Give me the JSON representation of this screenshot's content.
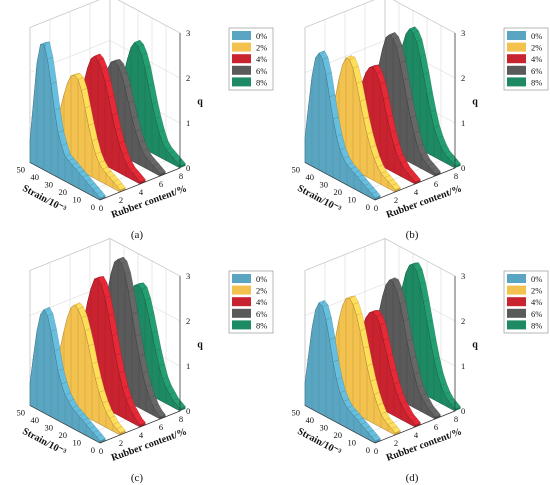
{
  "chart_data": [
    {
      "type": "area",
      "subtype": "3d-stacked-walls",
      "caption": "(a)",
      "xlabel": "Rubber content/%",
      "ylabel": "Strain/10⁻³",
      "zlabel": "q",
      "x_ticks": [
        "0",
        "2",
        "4",
        "6",
        "8"
      ],
      "y_ticks": [
        "0",
        "10",
        "20",
        "30",
        "40",
        "50"
      ],
      "z_ticks": [
        "0",
        "1",
        "2",
        "3"
      ],
      "xlim": [
        0,
        8
      ],
      "ylim": [
        0,
        50
      ],
      "zlim": [
        0,
        3
      ],
      "legend_position": "top-right",
      "y": [
        0,
        2.5,
        5,
        7.5,
        10,
        12.5,
        15,
        17.5,
        20,
        22.5,
        25,
        27.5,
        30,
        32.5,
        35,
        37.5,
        40,
        42.5,
        45,
        47.5,
        50
      ],
      "series": [
        {
          "name": "0%",
          "color": "#5aa6c2",
          "values": [
            0.05,
            0.1,
            0.15,
            0.2,
            0.25,
            0.3,
            0.35,
            0.4,
            0.45,
            0.5,
            0.55,
            0.75,
            1.0,
            1.45,
            2.0,
            2.5,
            2.8,
            2.75,
            2.3,
            1.4,
            0.5
          ]
        },
        {
          "name": "2%",
          "color": "#f2c14e",
          "values": [
            0.05,
            0.1,
            0.15,
            0.2,
            0.25,
            0.3,
            0.4,
            0.55,
            0.8,
            1.1,
            1.45,
            1.8,
            2.0,
            2.05,
            2.0,
            1.8,
            1.5,
            1.15,
            0.85,
            0.6,
            0.5
          ]
        },
        {
          "name": "4%",
          "color": "#c9232f",
          "values": [
            0.05,
            0.1,
            0.15,
            0.2,
            0.3,
            0.45,
            0.65,
            0.9,
            1.2,
            1.55,
            1.85,
            2.1,
            2.25,
            2.3,
            2.2,
            1.95,
            1.6,
            1.2,
            0.9,
            0.65,
            0.5
          ]
        },
        {
          "name": "6%",
          "color": "#5a5a5a",
          "values": [
            0.05,
            0.1,
            0.15,
            0.2,
            0.25,
            0.35,
            0.5,
            0.7,
            0.95,
            1.25,
            1.55,
            1.8,
            1.95,
            2.0,
            1.95,
            1.75,
            1.45,
            1.1,
            0.8,
            0.6,
            0.45
          ]
        },
        {
          "name": "8%",
          "color": "#1e8a63",
          "values": [
            0.05,
            0.1,
            0.15,
            0.2,
            0.25,
            0.35,
            0.55,
            0.8,
            1.1,
            1.45,
            1.8,
            2.05,
            2.2,
            2.25,
            2.1,
            1.8,
            1.45,
            1.1,
            0.8,
            0.55,
            0.4
          ]
        }
      ]
    },
    {
      "type": "area",
      "subtype": "3d-stacked-walls",
      "caption": "(b)",
      "xlabel": "Rubber content/%",
      "ylabel": "Strain/10⁻³",
      "zlabel": "q",
      "x_ticks": [
        "0",
        "2",
        "4",
        "6",
        "8"
      ],
      "y_ticks": [
        "0",
        "10",
        "20",
        "30",
        "40",
        "50"
      ],
      "z_ticks": [
        "0",
        "1",
        "2",
        "3"
      ],
      "xlim": [
        0,
        8
      ],
      "ylim": [
        0,
        50
      ],
      "zlim": [
        0,
        3
      ],
      "legend_position": "top-right",
      "y": [
        0,
        2.5,
        5,
        7.5,
        10,
        12.5,
        15,
        17.5,
        20,
        22.5,
        25,
        27.5,
        30,
        32.5,
        35,
        37.5,
        40,
        42.5,
        45,
        47.5,
        50
      ],
      "series": [
        {
          "name": "0%",
          "color": "#5aa6c2",
          "values": [
            0.05,
            0.1,
            0.15,
            0.2,
            0.25,
            0.3,
            0.35,
            0.4,
            0.45,
            0.55,
            0.7,
            0.95,
            1.3,
            1.75,
            2.2,
            2.5,
            2.6,
            2.45,
            2.0,
            1.3,
            0.55
          ]
        },
        {
          "name": "2%",
          "color": "#f2c14e",
          "values": [
            0.05,
            0.1,
            0.15,
            0.2,
            0.25,
            0.35,
            0.5,
            0.7,
            0.95,
            1.25,
            1.6,
            1.95,
            2.25,
            2.4,
            2.4,
            2.2,
            1.85,
            1.4,
            1.0,
            0.7,
            0.5
          ]
        },
        {
          "name": "4%",
          "color": "#c9232f",
          "values": [
            0.05,
            0.1,
            0.15,
            0.2,
            0.3,
            0.4,
            0.6,
            0.85,
            1.15,
            1.5,
            1.8,
            2.0,
            2.1,
            2.05,
            1.9,
            1.65,
            1.35,
            1.0,
            0.75,
            0.55,
            0.4
          ]
        },
        {
          "name": "6%",
          "color": "#5a5a5a",
          "values": [
            0.05,
            0.1,
            0.15,
            0.2,
            0.3,
            0.45,
            0.7,
            1.0,
            1.35,
            1.75,
            2.1,
            2.4,
            2.55,
            2.6,
            2.5,
            2.2,
            1.8,
            1.35,
            0.95,
            0.65,
            0.45
          ]
        },
        {
          "name": "8%",
          "color": "#1e8a63",
          "values": [
            0.05,
            0.1,
            0.15,
            0.2,
            0.3,
            0.45,
            0.65,
            0.95,
            1.3,
            1.7,
            2.05,
            2.35,
            2.5,
            2.55,
            2.4,
            2.1,
            1.7,
            1.3,
            0.9,
            0.6,
            0.4
          ]
        }
      ]
    },
    {
      "type": "area",
      "subtype": "3d-stacked-walls",
      "caption": "(c)",
      "xlabel": "Rubber content/%",
      "ylabel": "Strain/10⁻³",
      "zlabel": "q",
      "x_ticks": [
        "0",
        "2",
        "4",
        "6",
        "8"
      ],
      "y_ticks": [
        "0",
        "10",
        "20",
        "30",
        "40",
        "50"
      ],
      "z_ticks": [
        "0",
        "1",
        "2",
        "3"
      ],
      "xlim": [
        0,
        8
      ],
      "ylim": [
        0,
        50
      ],
      "zlim": [
        0,
        3
      ],
      "legend_position": "top-right",
      "y": [
        0,
        2.5,
        5,
        7.5,
        10,
        12.5,
        15,
        17.5,
        20,
        22.5,
        25,
        27.5,
        30,
        32.5,
        35,
        37.5,
        40,
        42.5,
        45,
        47.5,
        50
      ],
      "series": [
        {
          "name": "0%",
          "color": "#5aa6c2",
          "values": [
            0.05,
            0.1,
            0.15,
            0.2,
            0.25,
            0.3,
            0.35,
            0.4,
            0.45,
            0.55,
            0.65,
            0.85,
            1.1,
            1.5,
            1.9,
            2.2,
            2.3,
            2.15,
            1.75,
            1.15,
            0.5
          ]
        },
        {
          "name": "2%",
          "color": "#f2c14e",
          "values": [
            0.05,
            0.1,
            0.15,
            0.25,
            0.35,
            0.5,
            0.7,
            0.95,
            1.25,
            1.6,
            1.9,
            2.15,
            2.3,
            2.35,
            2.25,
            2.0,
            1.65,
            1.25,
            0.9,
            0.65,
            0.45
          ]
        },
        {
          "name": "4%",
          "color": "#c9232f",
          "values": [
            0.05,
            0.1,
            0.2,
            0.3,
            0.45,
            0.65,
            0.95,
            1.3,
            1.7,
            2.1,
            2.45,
            2.7,
            2.8,
            2.75,
            2.5,
            2.15,
            1.7,
            1.25,
            0.9,
            0.6,
            0.4
          ]
        },
        {
          "name": "6%",
          "color": "#5a5a5a",
          "values": [
            0.05,
            0.1,
            0.2,
            0.35,
            0.55,
            0.8,
            1.15,
            1.55,
            2.0,
            2.45,
            2.8,
            3.0,
            3.05,
            2.95,
            2.65,
            2.2,
            1.7,
            1.25,
            0.85,
            0.55,
            0.35
          ]
        },
        {
          "name": "8%",
          "color": "#1e8a63",
          "values": [
            0.05,
            0.1,
            0.15,
            0.25,
            0.35,
            0.5,
            0.75,
            1.05,
            1.4,
            1.75,
            2.05,
            2.25,
            2.3,
            2.25,
            2.05,
            1.75,
            1.4,
            1.05,
            0.75,
            0.5,
            0.35
          ]
        }
      ]
    },
    {
      "type": "area",
      "subtype": "3d-stacked-walls",
      "caption": "(d)",
      "xlabel": "Rubber content/%",
      "ylabel": "Strain/10⁻³",
      "zlabel": "q",
      "x_ticks": [
        "0",
        "2",
        "4",
        "6",
        "8"
      ],
      "y_ticks": [
        "0",
        "10",
        "20",
        "30",
        "40",
        "50"
      ],
      "z_ticks": [
        "0",
        "1",
        "2",
        "3"
      ],
      "xlim": [
        0,
        8
      ],
      "ylim": [
        0,
        50
      ],
      "zlim": [
        0,
        3
      ],
      "legend_position": "top-right",
      "y": [
        0,
        2.5,
        5,
        7.5,
        10,
        12.5,
        15,
        17.5,
        20,
        22.5,
        25,
        27.5,
        30,
        32.5,
        35,
        37.5,
        40,
        42.5,
        45,
        47.5,
        50
      ],
      "series": [
        {
          "name": "0%",
          "color": "#5aa6c2",
          "values": [
            0.05,
            0.1,
            0.15,
            0.2,
            0.25,
            0.3,
            0.35,
            0.4,
            0.45,
            0.55,
            0.7,
            0.95,
            1.3,
            1.75,
            2.15,
            2.4,
            2.45,
            2.25,
            1.8,
            1.15,
            0.5
          ]
        },
        {
          "name": "2%",
          "color": "#f2c14e",
          "values": [
            0.05,
            0.1,
            0.15,
            0.2,
            0.3,
            0.45,
            0.65,
            0.9,
            1.2,
            1.55,
            1.9,
            2.2,
            2.4,
            2.5,
            2.45,
            2.25,
            1.9,
            1.45,
            1.05,
            0.7,
            0.5
          ]
        },
        {
          "name": "4%",
          "color": "#c9232f",
          "values": [
            0.05,
            0.1,
            0.15,
            0.25,
            0.35,
            0.5,
            0.7,
            0.95,
            1.25,
            1.55,
            1.85,
            2.0,
            2.05,
            2.0,
            1.85,
            1.6,
            1.3,
            1.0,
            0.75,
            0.55,
            0.4
          ]
        },
        {
          "name": "6%",
          "color": "#5a5a5a",
          "values": [
            0.05,
            0.1,
            0.15,
            0.25,
            0.35,
            0.5,
            0.75,
            1.05,
            1.4,
            1.8,
            2.15,
            2.4,
            2.55,
            2.55,
            2.4,
            2.1,
            1.7,
            1.3,
            0.9,
            0.6,
            0.4
          ]
        },
        {
          "name": "8%",
          "color": "#1e8a63",
          "values": [
            0.05,
            0.1,
            0.15,
            0.25,
            0.4,
            0.6,
            0.9,
            1.25,
            1.65,
            2.05,
            2.4,
            2.65,
            2.75,
            2.7,
            2.5,
            2.15,
            1.75,
            1.3,
            0.9,
            0.6,
            0.4
          ]
        }
      ]
    }
  ]
}
